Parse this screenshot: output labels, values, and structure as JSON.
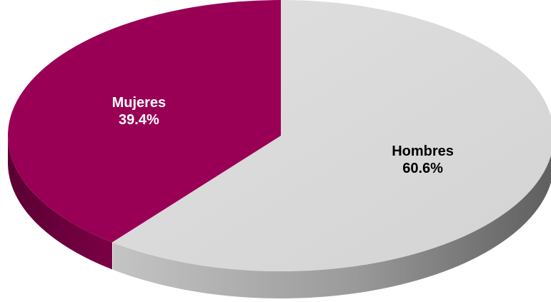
{
  "chart_data": {
    "type": "pie",
    "style": "3d-tilted",
    "title": "",
    "slices": [
      {
        "name": "Hombres",
        "value": 60.6,
        "value_label": "60.6%",
        "color": "#d9d9d9",
        "side_color": "#8a8a8a",
        "label_color": "#000000"
      },
      {
        "name": "Mujeres",
        "value": 39.4,
        "value_label": "39.4%",
        "color": "#990055",
        "side_color": "#6a003b",
        "label_color": "#ffffff"
      }
    ],
    "legend": "none"
  }
}
